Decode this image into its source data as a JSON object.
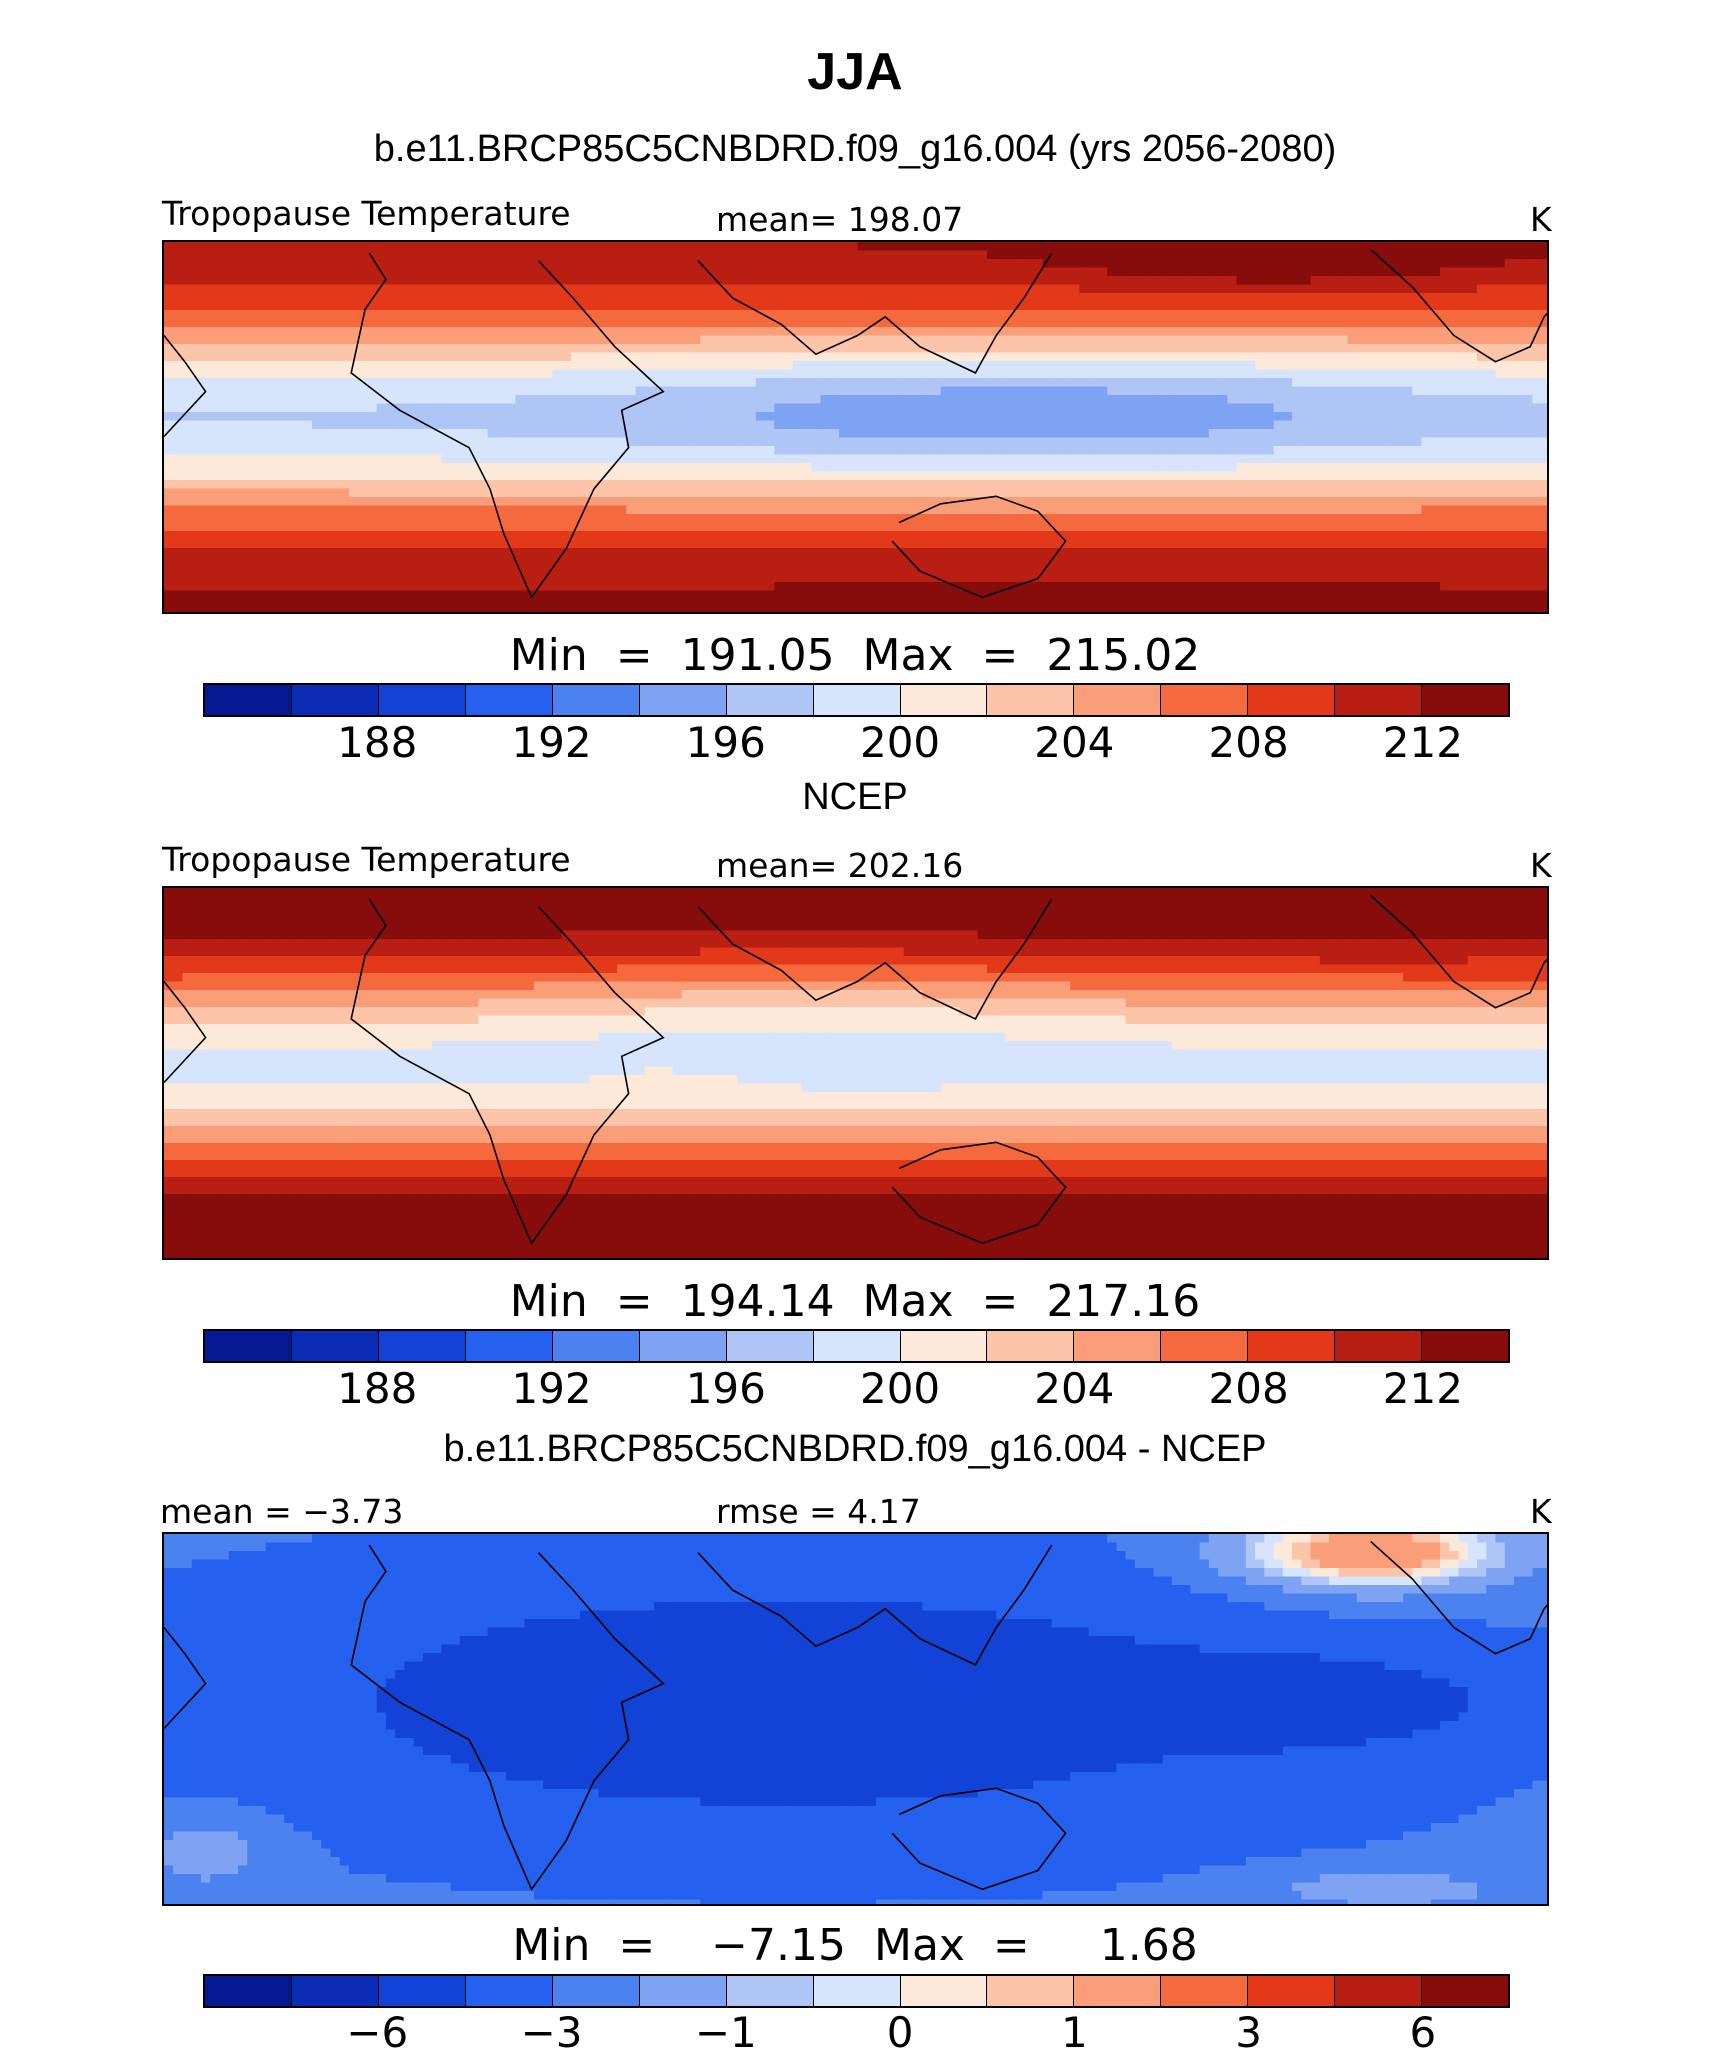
{
  "figure_title": "JJA",
  "palette": [
    "#061892",
    "#0b2cb4",
    "#1243d6",
    "#2560ee",
    "#4c82f0",
    "#7ea3f2",
    "#aec5f6",
    "#d6e5fb",
    "#fde9d9",
    "#fcc4a8",
    "#f99e78",
    "#f4693e",
    "#e2391b",
    "#b81e12",
    "#870c0c"
  ],
  "land_outline_color": "#000000",
  "chart_data": [
    {
      "type": "heatmap",
      "panel_title": "b.e11.BRCP85C5CNBDRD.f09_g16.004 (yrs 2056-2080)",
      "left_label": "Tropopause  Temperature",
      "center_label": "mean=  198.07",
      "units": "K",
      "min_max": "Min  =  191.05  Max  =  215.02",
      "field_min": 191.05,
      "field_max": 215.02,
      "mean": 198.07,
      "contour_levels": [
        186,
        188,
        190,
        192,
        194,
        196,
        198,
        200,
        202,
        204,
        206,
        208,
        210,
        212
      ],
      "colorbar_labels": [
        "188",
        "192",
        "196",
        "200",
        "204",
        "208",
        "212"
      ]
    },
    {
      "type": "heatmap",
      "panel_title": "NCEP",
      "left_label": "Tropopause  Temperature",
      "center_label": "mean=  202.16",
      "units": "K",
      "min_max": "Min  =  194.14  Max  =  217.16",
      "field_min": 194.14,
      "field_max": 217.16,
      "mean": 202.16,
      "contour_levels": [
        186,
        188,
        190,
        192,
        194,
        196,
        198,
        200,
        202,
        204,
        206,
        208,
        210,
        212
      ],
      "colorbar_labels": [
        "188",
        "192",
        "196",
        "200",
        "204",
        "208",
        "212"
      ]
    },
    {
      "type": "heatmap",
      "panel_title": "b.e11.BRCP85C5CNBDRD.f09_g16.004 - NCEP",
      "left_label": "mean =   −3.73",
      "center_label": "rmse =     4.17",
      "units": "K",
      "min_max": "Min  =    −7.15  Max  =     1.68",
      "field_min": -7.15,
      "field_max": 1.68,
      "mean": -3.73,
      "rmse": 4.17,
      "contour_levels": [
        -8,
        -6,
        -4,
        -3,
        -2,
        -1,
        -0.5,
        0,
        0.5,
        1,
        2,
        3,
        4,
        6
      ],
      "colorbar_labels": [
        "−6",
        "−3",
        "−1",
        "0",
        "1",
        "3",
        "6"
      ]
    }
  ]
}
